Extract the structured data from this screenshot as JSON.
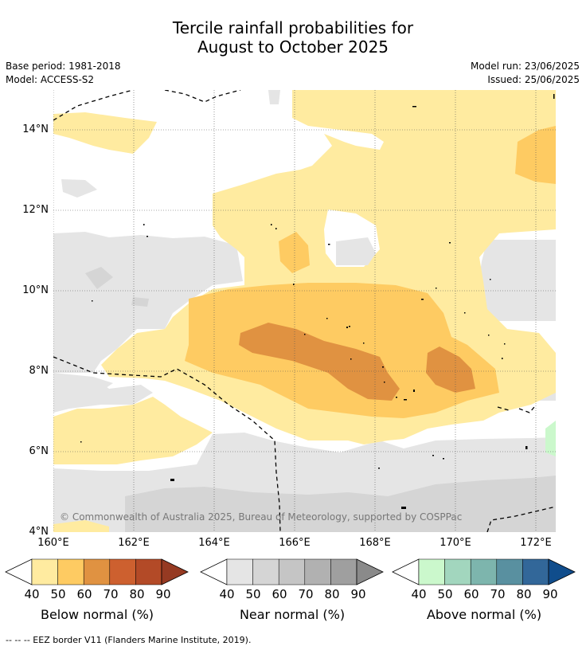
{
  "title_line1": "Tercile rainfall probabilities for",
  "title_line2": "August to October 2025",
  "meta": {
    "base_period": "Base period: 1981-2018",
    "model": "Model: ACCESS-S2",
    "model_run": "Model run: 23/06/2025",
    "issued": "Issued: 25/06/2025"
  },
  "map": {
    "lat_labels": [
      "14°N",
      "12°N",
      "10°N",
      "8°N",
      "6°N",
      "4°N"
    ],
    "lon_labels": [
      "160°E",
      "162°E",
      "164°E",
      "166°E",
      "168°E",
      "170°E",
      "172°E"
    ],
    "copyright": "© Commonwealth of Australia 2025, Bureau of Meteorology, supported by COSPPac"
  },
  "colorbars": [
    {
      "label": "Below normal (%)",
      "ticks": [
        "40",
        "50",
        "60",
        "70",
        "80",
        "90"
      ],
      "colors": [
        "#ffeba0",
        "#fecb62",
        "#e09241",
        "#cd602f",
        "#b34a27",
        "#963a22"
      ]
    },
    {
      "label": "Near normal (%)",
      "ticks": [
        "40",
        "50",
        "60",
        "70",
        "80",
        "90"
      ],
      "colors": [
        "#e5e5e5",
        "#d5d5d5",
        "#c5c5c5",
        "#b1b1b1",
        "#9f9f9f",
        "#8a8a8a"
      ]
    },
    {
      "label": "Above normal (%)",
      "ticks": [
        "40",
        "50",
        "60",
        "70",
        "80",
        "90"
      ],
      "colors": [
        "#cbf8cc",
        "#a2d6be",
        "#7db5ad",
        "#5990a0",
        "#326799",
        "#104d8c"
      ]
    }
  ],
  "footnote": "--  --  -- EEZ border V11 (Flanders Marine Institute, 2019)."
}
